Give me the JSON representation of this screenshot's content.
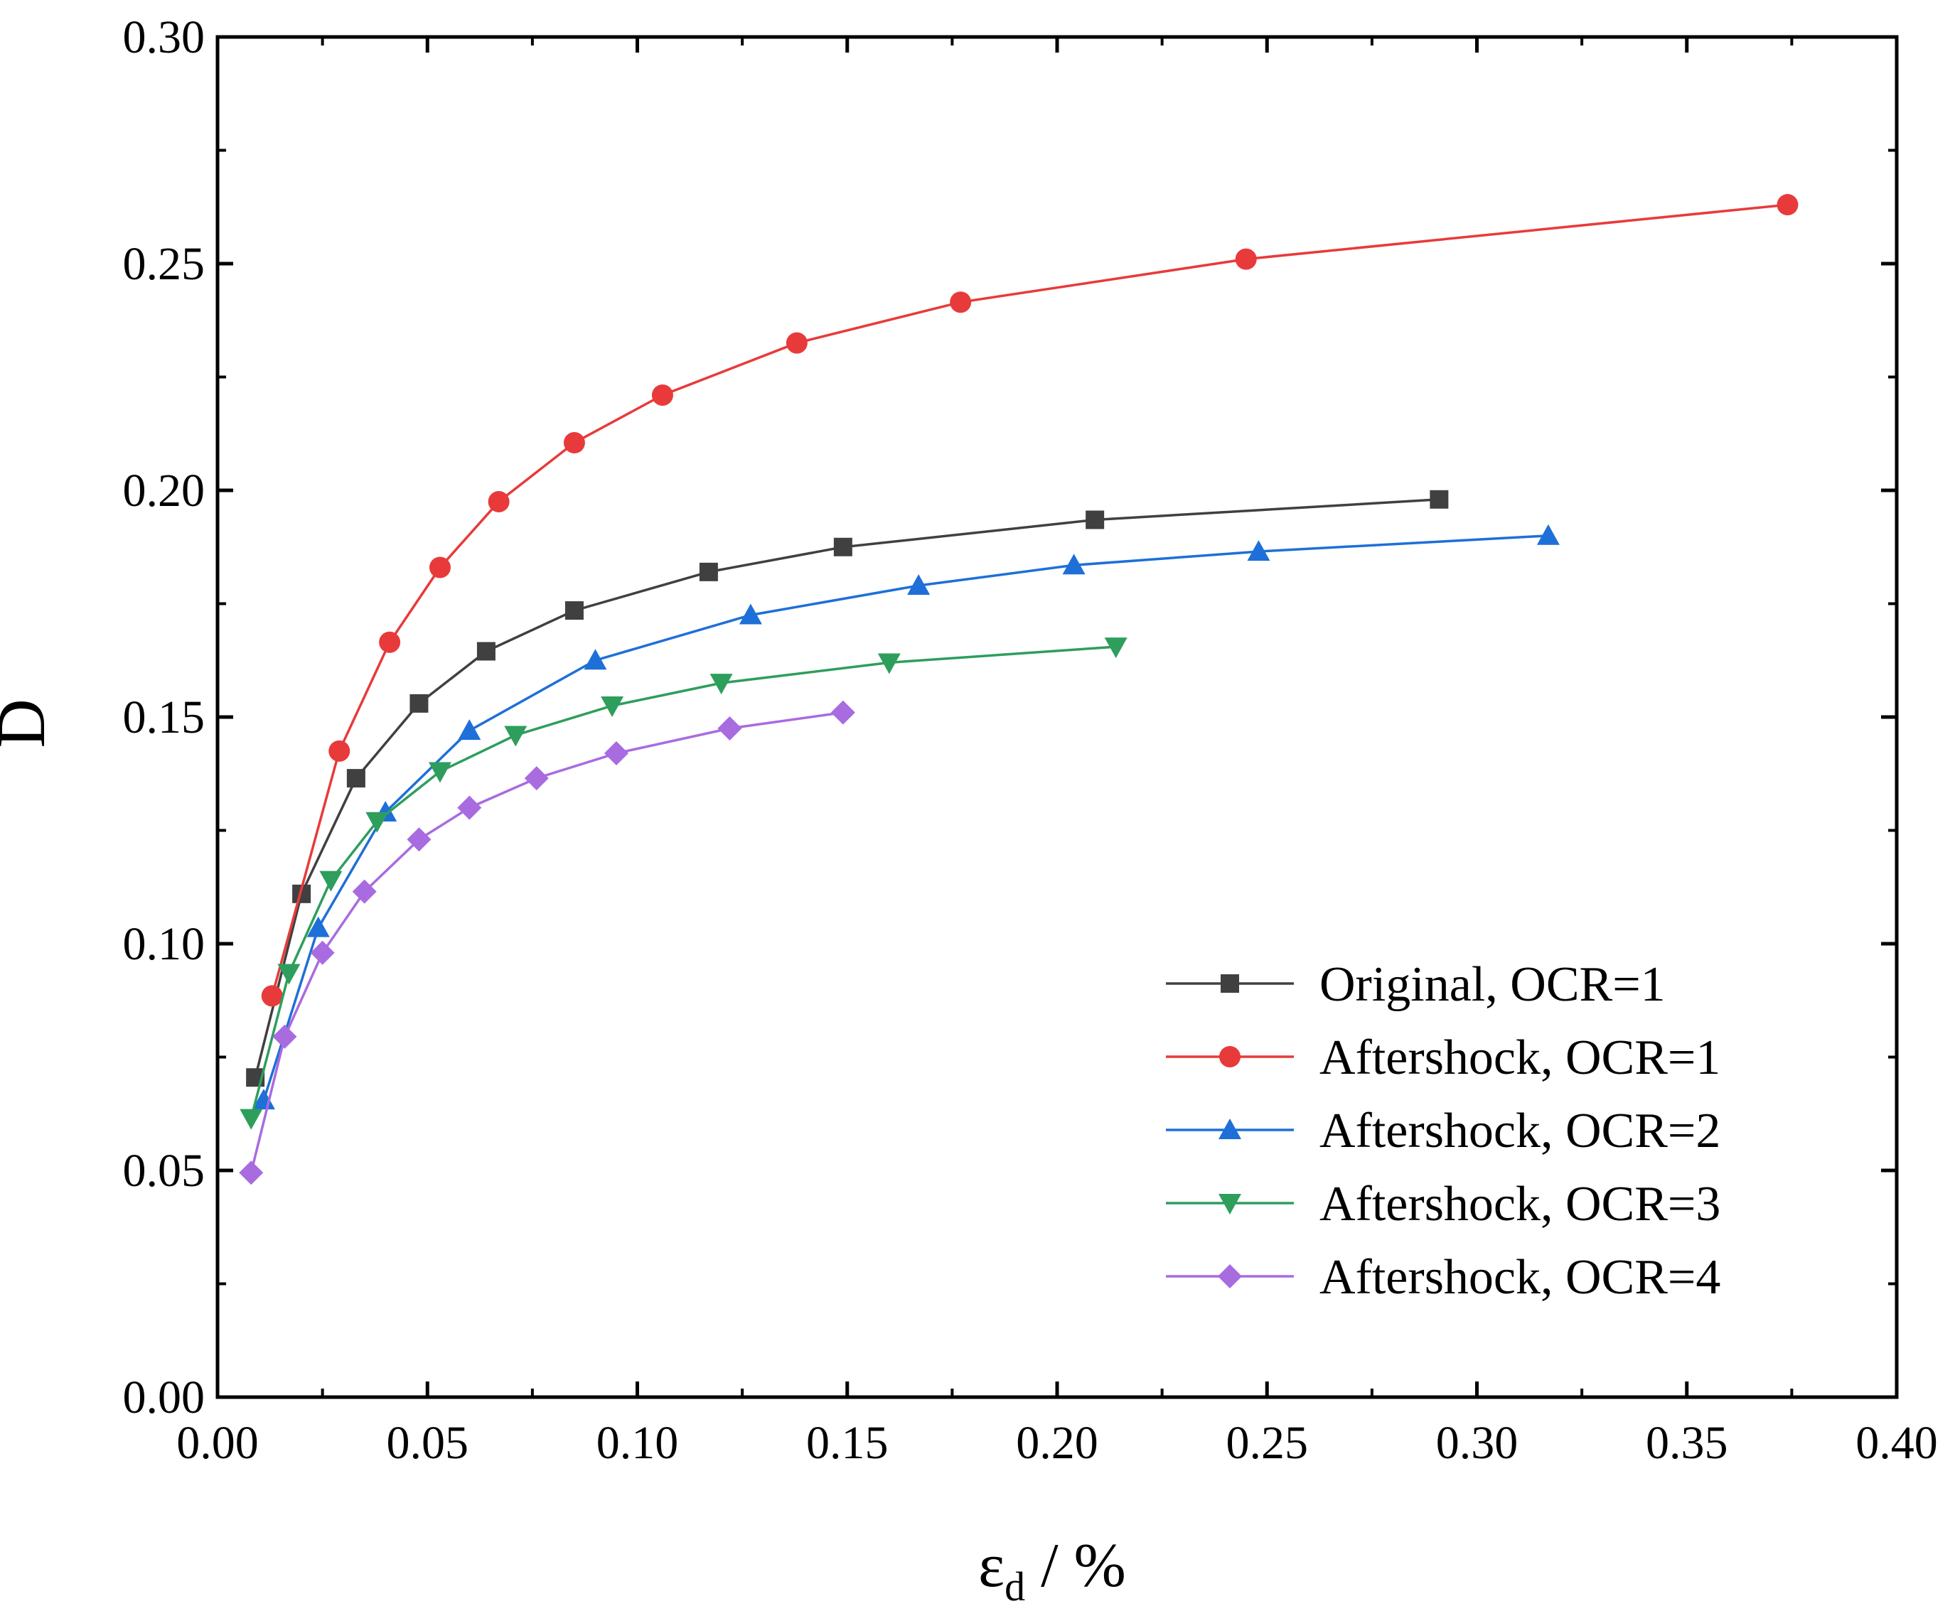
{
  "chart_data": {
    "type": "line",
    "title": "",
    "xlabel": {
      "symbol": "ε",
      "subscript": "d",
      "suffix": " / %"
    },
    "ylabel": "D",
    "xlim": [
      0.0,
      0.4
    ],
    "ylim": [
      0.0,
      0.3
    ],
    "xticks": [
      "0.00",
      "0.05",
      "0.10",
      "0.15",
      "0.20",
      "0.25",
      "0.30",
      "0.35",
      "0.40"
    ],
    "yticks": [
      "0.00",
      "0.05",
      "0.10",
      "0.15",
      "0.20",
      "0.25",
      "0.30"
    ],
    "grid": false,
    "legend_position": "bottom-right",
    "series": [
      {
        "name": "Original, OCR=1",
        "color": "#404040",
        "marker": "square",
        "x": [
          0.009,
          0.02,
          0.033,
          0.048,
          0.064,
          0.085,
          0.117,
          0.149,
          0.209,
          0.291
        ],
        "y": [
          0.0705,
          0.111,
          0.1365,
          0.153,
          0.1645,
          0.1735,
          0.182,
          0.1875,
          0.1935,
          0.198
        ]
      },
      {
        "name": "Aftershock, OCR=1",
        "color": "#e83a3a",
        "marker": "circle",
        "x": [
          0.013,
          0.029,
          0.041,
          0.053,
          0.067,
          0.085,
          0.106,
          0.138,
          0.177,
          0.245,
          0.374
        ],
        "y": [
          0.0885,
          0.1425,
          0.1665,
          0.183,
          0.1975,
          0.2105,
          0.221,
          0.2325,
          0.2415,
          0.251,
          0.263
        ]
      },
      {
        "name": "Aftershock, OCR=2",
        "color": "#1e6fd8",
        "marker": "triangle-up",
        "x": [
          0.011,
          0.024,
          0.04,
          0.06,
          0.09,
          0.127,
          0.167,
          0.204,
          0.248,
          0.317
        ],
        "y": [
          0.0655,
          0.1035,
          0.129,
          0.147,
          0.1625,
          0.1725,
          0.179,
          0.1835,
          0.1865,
          0.19
        ]
      },
      {
        "name": "Aftershock, OCR=3",
        "color": "#2e9e5c",
        "marker": "triangle-down",
        "x": [
          0.008,
          0.017,
          0.027,
          0.038,
          0.053,
          0.071,
          0.094,
          0.12,
          0.16,
          0.214
        ],
        "y": [
          0.0615,
          0.0935,
          0.114,
          0.127,
          0.138,
          0.146,
          0.1525,
          0.1575,
          0.162,
          0.1655
        ]
      },
      {
        "name": "Aftershock, OCR=4",
        "color": "#a86be0",
        "marker": "diamond",
        "x": [
          0.008,
          0.016,
          0.025,
          0.035,
          0.048,
          0.06,
          0.076,
          0.095,
          0.122,
          0.149
        ],
        "y": [
          0.0495,
          0.0795,
          0.098,
          0.1115,
          0.123,
          0.13,
          0.1365,
          0.142,
          0.1475,
          0.151
        ]
      }
    ]
  }
}
